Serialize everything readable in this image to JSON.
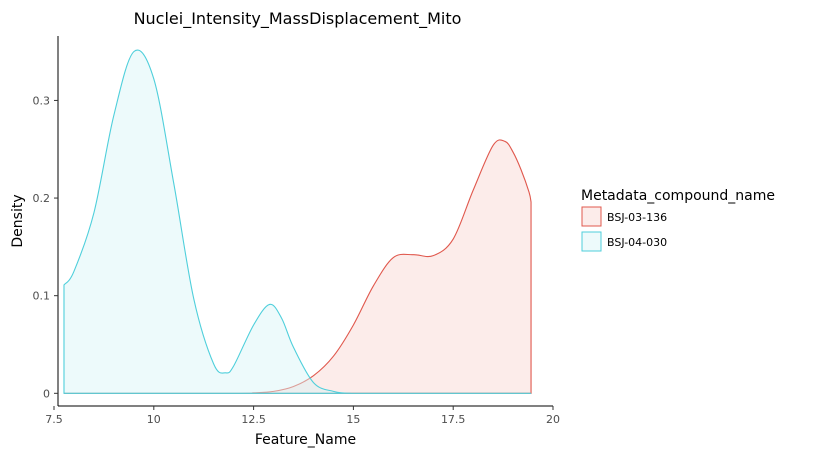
{
  "chart_data": {
    "type": "area",
    "title": "Nuclei_Intensity_MassDisplacement_Mito",
    "xlabel": "Feature_Name",
    "ylabel": "Density",
    "xlim": [
      7.6,
      20.0
    ],
    "ylim": [
      -0.013,
      0.366
    ],
    "x_ticks": [
      7.5,
      10,
      12.5,
      15,
      17.5,
      20
    ],
    "x_tick_labels": [
      "7.5",
      "10",
      "12.5",
      "15",
      "17.5",
      "20"
    ],
    "y_ticks": [
      0,
      0.1,
      0.2,
      0.3
    ],
    "y_tick_labels": [
      "0",
      "0.1",
      "0.2",
      "0.3"
    ],
    "grid": false,
    "legend": {
      "title": "Metadata_compound_name",
      "placement": "right"
    },
    "series": [
      {
        "name": "BSJ-03-136",
        "line_color": "#e0584d",
        "fill_color": "#f8d4d0",
        "x": [
          7.75,
          12.0,
          12.5,
          13.0,
          13.5,
          14.0,
          14.5,
          15.0,
          15.5,
          16.0,
          16.5,
          17.0,
          17.5,
          18.0,
          18.5,
          18.8,
          19.0,
          19.2,
          19.4,
          19.45
        ],
        "y": [
          0.0,
          0.0,
          0.0005,
          0.002,
          0.007,
          0.018,
          0.038,
          0.07,
          0.11,
          0.139,
          0.142,
          0.141,
          0.158,
          0.208,
          0.254,
          0.258,
          0.247,
          0.229,
          0.206,
          0.196
        ]
      },
      {
        "name": "BSJ-04-030",
        "line_color": "#4fcfdb",
        "fill_color": "#d6f4f7",
        "x": [
          7.75,
          8.0,
          8.5,
          9.0,
          9.5,
          10.0,
          10.5,
          11.0,
          11.5,
          11.8,
          12.0,
          12.5,
          12.9,
          13.2,
          13.5,
          14.0,
          14.5,
          15.0,
          16.0,
          19.45
        ],
        "y": [
          0.111,
          0.125,
          0.185,
          0.285,
          0.35,
          0.322,
          0.215,
          0.097,
          0.03,
          0.021,
          0.028,
          0.07,
          0.091,
          0.077,
          0.047,
          0.011,
          0.002,
          0.0,
          0.0,
          0.0
        ]
      }
    ]
  }
}
